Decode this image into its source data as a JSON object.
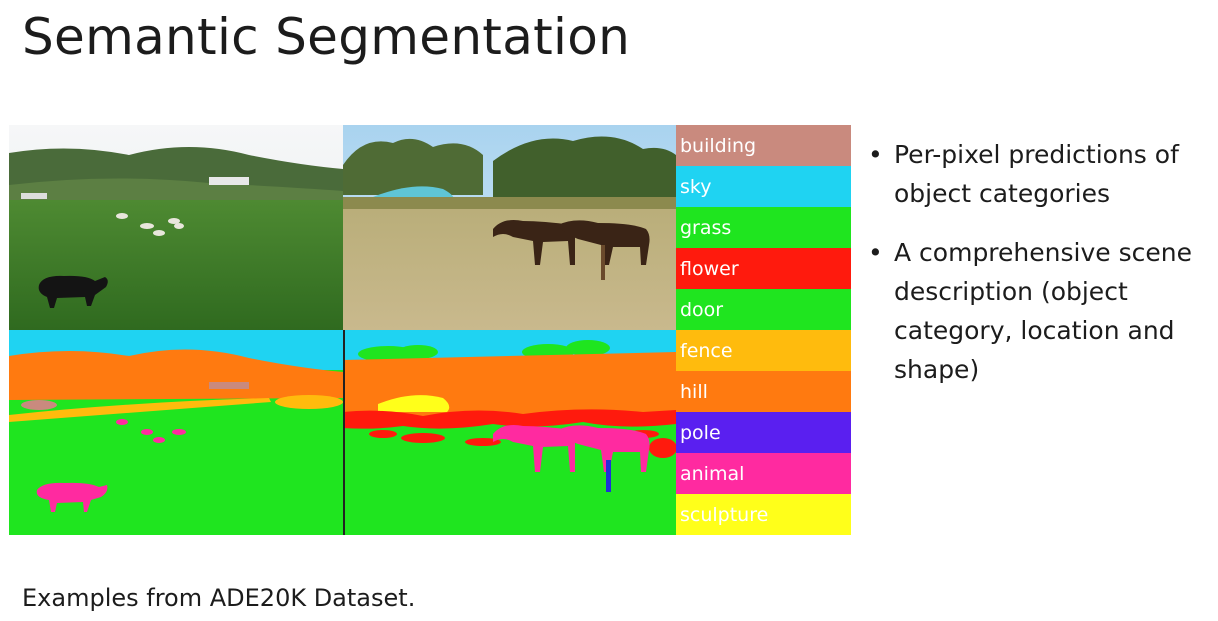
{
  "slide": {
    "title": "Semantic Segmentation",
    "caption": "Examples from ADE20K Dataset."
  },
  "legend": [
    {
      "label": "building",
      "color": "#c98a7e"
    },
    {
      "label": "sky",
      "color": "#1fd3f2"
    },
    {
      "label": "grass",
      "color": "#1fe51f"
    },
    {
      "label": "flower",
      "color": "#ff1a0d"
    },
    {
      "label": "door",
      "color": "#1fe51f"
    },
    {
      "label": "fence",
      "color": "#ffbb0d"
    },
    {
      "label": "hill",
      "color": "#ff7a10"
    },
    {
      "label": "pole",
      "color": "#5a1ff0"
    },
    {
      "label": "animal",
      "color": "#ff2aa0"
    },
    {
      "label": "sculpture",
      "color": "#ffff1a"
    }
  ],
  "bullets": [
    "Per-pixel predictions of object categories",
    "A comprehensive scene description (object category, location and shape)"
  ]
}
